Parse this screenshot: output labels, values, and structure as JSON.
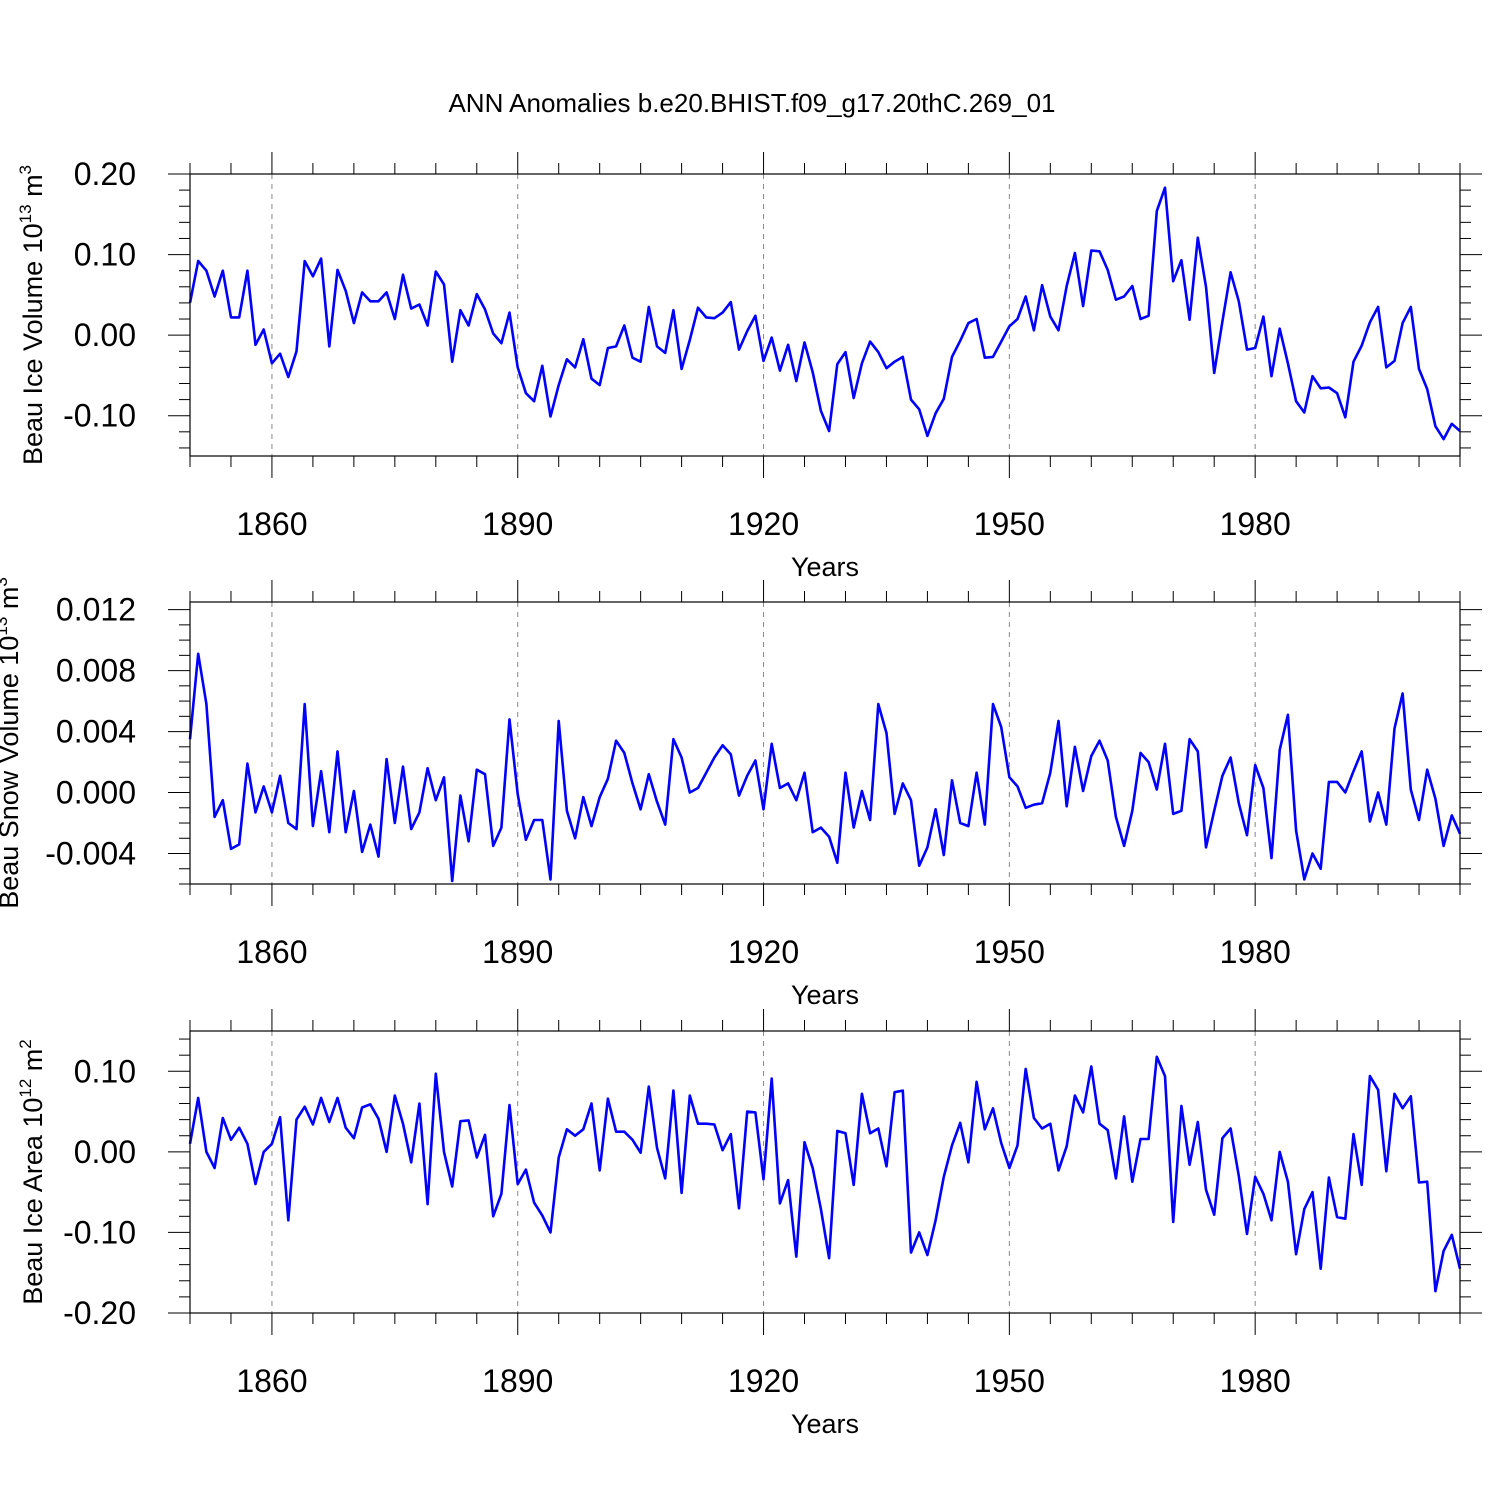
{
  "chart_data": {
    "type": "line",
    "title": "ANN Anomalies b.e20.BHIST.f09_g17.20thC.269_01",
    "line_color": "#0000ff",
    "grid_color": "#888888",
    "panels": [
      {
        "id": "ice-volume",
        "ylabel": {
          "text": "Beau Ice Volume 10",
          "exp": "13",
          "unit": " m",
          "unit_exp": "3"
        },
        "xlabel": "Years",
        "xlim": [
          1850,
          2005
        ],
        "ylim": [
          -0.15,
          0.2
        ],
        "xticks": [
          1860,
          1890,
          1920,
          1950,
          1980
        ],
        "xtick_labels": [
          "1860",
          "1890",
          "1920",
          "1950",
          "1980"
        ],
        "yticks": [
          -0.1,
          0.0,
          0.1,
          0.2
        ],
        "ytick_labels": [
          "-0.10",
          "0.00",
          "0.10",
          "0.20"
        ],
        "minor_x": 5,
        "minor_y": 0.02,
        "x_start": 1850,
        "values": [
          0.04,
          0.092,
          0.08,
          0.048,
          0.08,
          0.022,
          0.022,
          0.08,
          -0.012,
          0.007,
          -0.035,
          -0.023,
          -0.052,
          -0.02,
          0.092,
          0.073,
          0.095,
          -0.014,
          0.081,
          0.055,
          0.015,
          0.053,
          0.042,
          0.042,
          0.053,
          0.02,
          0.075,
          0.033,
          0.038,
          0.012,
          0.079,
          0.063,
          -0.033,
          0.031,
          0.012,
          0.051,
          0.032,
          0.002,
          -0.01,
          0.028,
          -0.04,
          -0.072,
          -0.082,
          -0.038,
          -0.101,
          -0.062,
          -0.03,
          -0.04,
          -0.005,
          -0.054,
          -0.062,
          -0.016,
          -0.014,
          0.012,
          -0.028,
          -0.033,
          0.035,
          -0.014,
          -0.022,
          0.031,
          -0.042,
          -0.006,
          0.034,
          0.022,
          0.021,
          0.028,
          0.041,
          -0.018,
          0.005,
          0.024,
          -0.032,
          -0.003,
          -0.044,
          -0.012,
          -0.057,
          -0.009,
          -0.046,
          -0.094,
          -0.119,
          -0.036,
          -0.021,
          -0.078,
          -0.035,
          -0.008,
          -0.021,
          -0.041,
          -0.033,
          -0.027,
          -0.08,
          -0.092,
          -0.125,
          -0.097,
          -0.079,
          -0.027,
          -0.007,
          0.015,
          0.02,
          -0.028,
          -0.027,
          -0.008,
          0.011,
          0.02,
          0.048,
          0.006,
          0.062,
          0.023,
          0.006,
          0.061,
          0.102,
          0.036,
          0.105,
          0.104,
          0.081,
          0.044,
          0.048,
          0.061,
          0.02,
          0.024,
          0.154,
          0.183,
          0.067,
          0.093,
          0.019,
          0.121,
          0.06,
          -0.047,
          0.017,
          0.078,
          0.042,
          -0.018,
          -0.016,
          0.023,
          -0.051,
          0.008,
          -0.035,
          -0.082,
          -0.096,
          -0.051,
          -0.066,
          -0.065,
          -0.072,
          -0.102,
          -0.033,
          -0.013,
          0.016,
          0.035,
          -0.04,
          -0.032,
          0.015,
          0.035,
          -0.042,
          -0.067,
          -0.113,
          -0.129,
          -0.11,
          -0.119
        ]
      },
      {
        "id": "snow-volume",
        "ylabel": {
          "text": "Beau Snow Volume 10",
          "exp": "13",
          "unit": " m",
          "unit_exp": "3"
        },
        "xlabel": "Years",
        "xlim": [
          1850,
          2005
        ],
        "ylim": [
          -0.006,
          0.0125
        ],
        "xticks": [
          1860,
          1890,
          1920,
          1950,
          1980
        ],
        "xtick_labels": [
          "1860",
          "1890",
          "1920",
          "1950",
          "1980"
        ],
        "yticks": [
          -0.004,
          0.0,
          0.004,
          0.008,
          0.012
        ],
        "ytick_labels": [
          "-0.004",
          "0.000",
          "0.004",
          "0.008",
          "0.012"
        ],
        "minor_x": 5,
        "minor_y": 0.001,
        "x_start": 1850,
        "values": [
          0.0035,
          0.0091,
          0.0058,
          -0.0016,
          -0.0005,
          -0.0037,
          -0.0034,
          0.0019,
          -0.0013,
          0.0004,
          -0.0013,
          0.0011,
          -0.002,
          -0.0024,
          0.0058,
          -0.0022,
          0.0014,
          -0.0026,
          0.0027,
          -0.0026,
          0.0001,
          -0.0039,
          -0.0021,
          -0.0042,
          0.0022,
          -0.002,
          0.0017,
          -0.0024,
          -0.0013,
          0.0016,
          -0.0005,
          0.001,
          -0.0058,
          -0.0002,
          -0.0032,
          0.0015,
          0.0012,
          -0.0035,
          -0.0023,
          0.0048,
          -0.0001,
          -0.0031,
          -0.0018,
          -0.0018,
          -0.0057,
          0.0047,
          -0.0012,
          -0.003,
          -0.0003,
          -0.0022,
          -0.0003,
          0.0009,
          0.0034,
          0.0026,
          0.0006,
          -0.0011,
          0.0012,
          -0.0006,
          -0.0021,
          0.0035,
          0.0023,
          0.0,
          0.0003,
          0.0013,
          0.0023,
          0.0031,
          0.0025,
          -0.0002,
          0.0011,
          0.0021,
          -0.0011,
          0.0032,
          0.0003,
          0.0006,
          -0.0005,
          0.0013,
          -0.0026,
          -0.0023,
          -0.0029,
          -0.0046,
          0.0013,
          -0.0023,
          0.0001,
          -0.0018,
          0.0058,
          0.0039,
          -0.0014,
          0.0006,
          -0.0005,
          -0.0048,
          -0.0036,
          -0.0011,
          -0.0041,
          0.0008,
          -0.002,
          -0.0022,
          0.0013,
          -0.0021,
          0.0058,
          0.0043,
          0.001,
          0.0004,
          -0.001,
          -0.0008,
          -0.0007,
          0.0013,
          0.0047,
          -0.0009,
          0.003,
          0.0001,
          0.0024,
          0.0034,
          0.0021,
          -0.0016,
          -0.0035,
          -0.0012,
          0.0026,
          0.002,
          0.0002,
          0.0032,
          -0.0014,
          -0.0012,
          0.0035,
          0.0027,
          -0.0036,
          -0.0012,
          0.0011,
          0.0023,
          -0.0007,
          -0.0028,
          0.0018,
          0.0003,
          -0.0043,
          0.0028,
          0.0051,
          -0.0025,
          -0.0057,
          -0.004,
          -0.005,
          0.0007,
          0.0007,
          0.0,
          0.0014,
          0.0027,
          -0.0019,
          0.0,
          -0.0021,
          0.0042,
          0.0065,
          0.0002,
          -0.0018,
          0.0015,
          -0.0004,
          -0.0035,
          -0.0015,
          -0.0027
        ]
      },
      {
        "id": "ice-area",
        "ylabel": {
          "text": "Beau Ice Area 10",
          "exp": "12",
          "unit": " m",
          "unit_exp": "2"
        },
        "xlabel": "Years",
        "xlim": [
          1850,
          2005
        ],
        "ylim": [
          -0.2,
          0.15
        ],
        "xticks": [
          1860,
          1890,
          1920,
          1950,
          1980
        ],
        "xtick_labels": [
          "1860",
          "1890",
          "1920",
          "1950",
          "1980"
        ],
        "yticks": [
          -0.2,
          -0.1,
          0.0,
          0.1
        ],
        "ytick_labels": [
          "-0.20",
          "-0.10",
          "0.00",
          "0.10"
        ],
        "minor_x": 5,
        "minor_y": 0.02,
        "x_start": 1850,
        "values": [
          0.01,
          0.067,
          0.0,
          -0.02,
          0.042,
          0.015,
          0.03,
          0.01,
          -0.04,
          0.0,
          0.01,
          0.043,
          -0.085,
          0.04,
          0.056,
          0.034,
          0.067,
          0.037,
          0.067,
          0.03,
          0.017,
          0.055,
          0.059,
          0.041,
          0.0,
          0.07,
          0.035,
          -0.013,
          0.06,
          -0.065,
          0.097,
          0.0,
          -0.043,
          0.038,
          0.039,
          -0.007,
          0.021,
          -0.08,
          -0.052,
          0.058,
          -0.04,
          -0.022,
          -0.063,
          -0.079,
          -0.1,
          -0.007,
          0.028,
          0.02,
          0.028,
          0.06,
          -0.023,
          0.066,
          0.025,
          0.025,
          0.015,
          -0.001,
          0.081,
          0.005,
          -0.033,
          0.076,
          -0.051,
          0.07,
          0.035,
          0.035,
          0.034,
          0.002,
          0.022,
          -0.07,
          0.05,
          0.049,
          -0.034,
          0.091,
          -0.064,
          -0.035,
          -0.13,
          0.012,
          -0.02,
          -0.071,
          -0.132,
          0.026,
          0.023,
          -0.041,
          0.072,
          0.023,
          0.029,
          -0.018,
          0.074,
          0.076,
          -0.125,
          -0.1,
          -0.128,
          -0.085,
          -0.031,
          0.008,
          0.036,
          -0.013,
          0.087,
          0.028,
          0.054,
          0.011,
          -0.02,
          0.008,
          0.103,
          0.042,
          0.029,
          0.035,
          -0.023,
          0.007,
          0.07,
          0.049,
          0.106,
          0.035,
          0.027,
          -0.033,
          0.044,
          -0.037,
          0.016,
          0.016,
          0.118,
          0.094,
          -0.087,
          0.057,
          -0.016,
          0.037,
          -0.047,
          -0.078,
          0.017,
          0.029,
          -0.03,
          -0.102,
          -0.031,
          -0.052,
          -0.085,
          0.0,
          -0.037,
          -0.127,
          -0.071,
          -0.05,
          -0.145,
          -0.032,
          -0.081,
          -0.083,
          0.022,
          -0.041,
          0.094,
          0.077,
          -0.024,
          0.072,
          0.054,
          0.069,
          -0.038,
          -0.037,
          -0.173,
          -0.123,
          -0.103,
          -0.145
        ]
      }
    ]
  }
}
